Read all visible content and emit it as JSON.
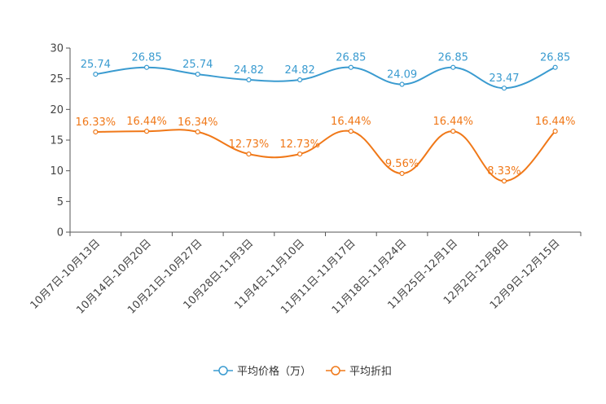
{
  "chart_data": {
    "type": "line",
    "categories": [
      "10月7日-10月13日",
      "10月14日-10月20日",
      "10月21日-10月27日",
      "10月28日-11月3日",
      "11月4日-11月10日",
      "11月11日-11月17日",
      "11月18日-11月24日",
      "11月25日-12月1日",
      "12月2日-12月8日",
      "12月9日-12月15日"
    ],
    "ylim": [
      0,
      30
    ],
    "yticks": [
      "0",
      "5",
      "10",
      "15",
      "20",
      "25",
      "30"
    ],
    "series": [
      {
        "name": "平均价格（万）",
        "color": "#3a9bd0",
        "values": [
          25.74,
          26.85,
          25.74,
          24.82,
          24.82,
          26.85,
          24.09,
          26.85,
          23.47,
          26.85
        ],
        "labels": [
          "25.74",
          "26.85",
          "25.74",
          "24.82",
          "24.82",
          "26.85",
          "24.09",
          "26.85",
          "23.47",
          "26.85"
        ]
      },
      {
        "name": "平均折扣",
        "color": "#f07818",
        "values": [
          16.33,
          16.44,
          16.34,
          12.73,
          12.73,
          16.44,
          9.56,
          16.44,
          8.33,
          16.44
        ],
        "labels": [
          "16.33%",
          "16.44%",
          "16.34%",
          "12.73%",
          "12.73%",
          "16.44%",
          "9.56%",
          "16.44%",
          "8.33%",
          "16.44%"
        ]
      }
    ],
    "legend_position": "bottom-center"
  }
}
